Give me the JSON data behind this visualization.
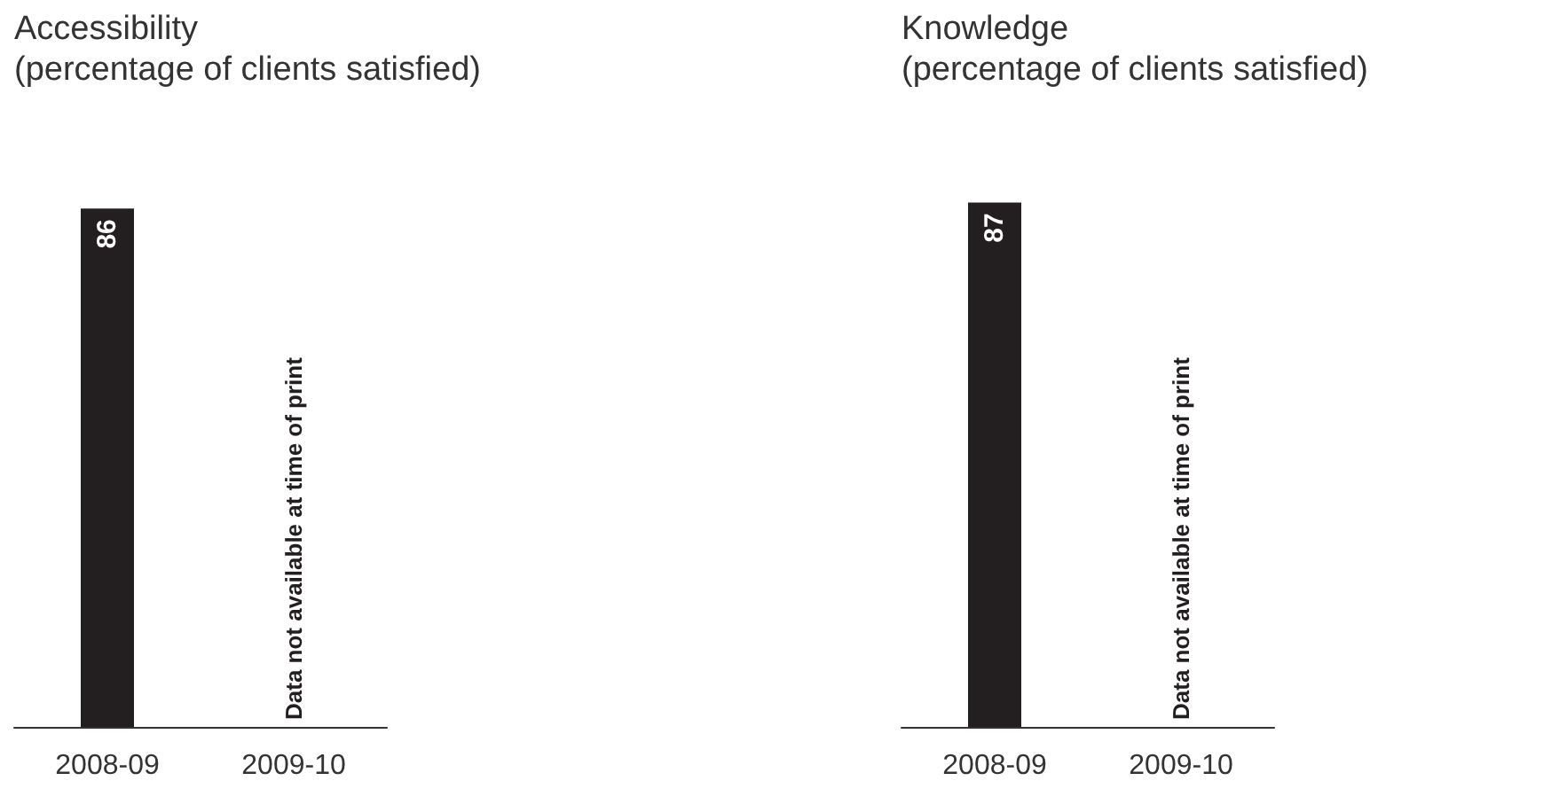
{
  "chart_data": [
    {
      "type": "bar",
      "title": "Accessibility",
      "subtitle": "(percentage of clients satisfied)",
      "categories": [
        "2008-09",
        "2009-10"
      ],
      "values": [
        86,
        null
      ],
      "color": "#231f20",
      "data_labels": true,
      "tick_labels": "x",
      "annotations": [
        "Data not available at time of print"
      ]
    },
    {
      "type": "bar",
      "title": "Knowledge",
      "subtitle": "(percentage of clients satisfied)",
      "categories": [
        "2008-09",
        "2009-10"
      ],
      "values": [
        87,
        null
      ],
      "color": "#231f20",
      "data_labels": true,
      "tick_labels": "x",
      "annotations": [
        "Data not available at time of print"
      ]
    }
  ]
}
